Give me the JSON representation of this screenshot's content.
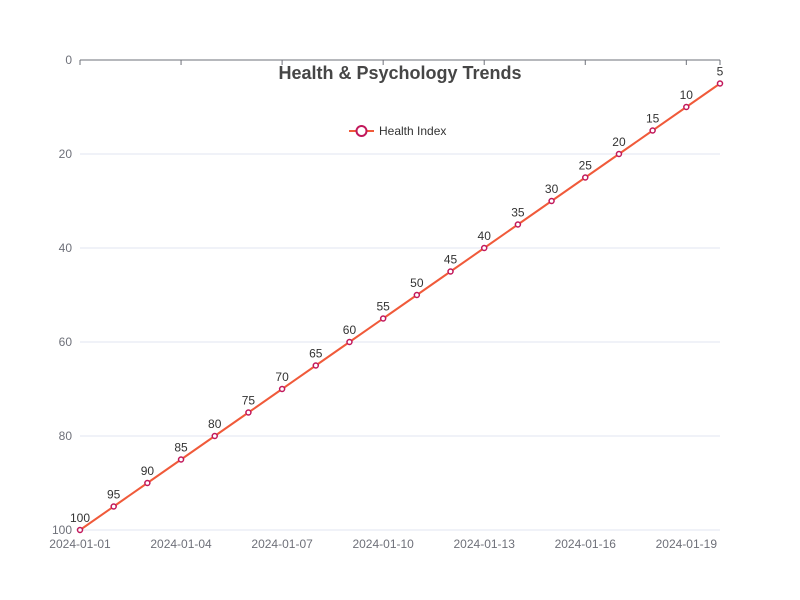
{
  "chart_data": {
    "type": "line",
    "title": "Health & Psychology Trends",
    "x": [
      "2024-01-01",
      "2024-01-02",
      "2024-01-03",
      "2024-01-04",
      "2024-01-05",
      "2024-01-06",
      "2024-01-07",
      "2024-01-08",
      "2024-01-09",
      "2024-01-10",
      "2024-01-11",
      "2024-01-12",
      "2024-01-13",
      "2024-01-14",
      "2024-01-15",
      "2024-01-16",
      "2024-01-17",
      "2024-01-18",
      "2024-01-19",
      "2024-01-20"
    ],
    "x_tick_labels": [
      "2024-01-01",
      "2024-01-04",
      "2024-01-07",
      "2024-01-10",
      "2024-01-13",
      "2024-01-16",
      "2024-01-19"
    ],
    "series": [
      {
        "name": "Health Index",
        "values": [
          100,
          95,
          90,
          85,
          80,
          75,
          70,
          65,
          60,
          55,
          50,
          45,
          40,
          35,
          30,
          25,
          20,
          15,
          10,
          5
        ]
      }
    ],
    "ylim": [
      0,
      100
    ],
    "y_inverted": true,
    "y_ticks": [
      0,
      20,
      40,
      60,
      80,
      100
    ],
    "grid": true,
    "legend_position": "top-center",
    "colors": {
      "line": "#f05a3a",
      "marker": "#c2185b"
    }
  }
}
